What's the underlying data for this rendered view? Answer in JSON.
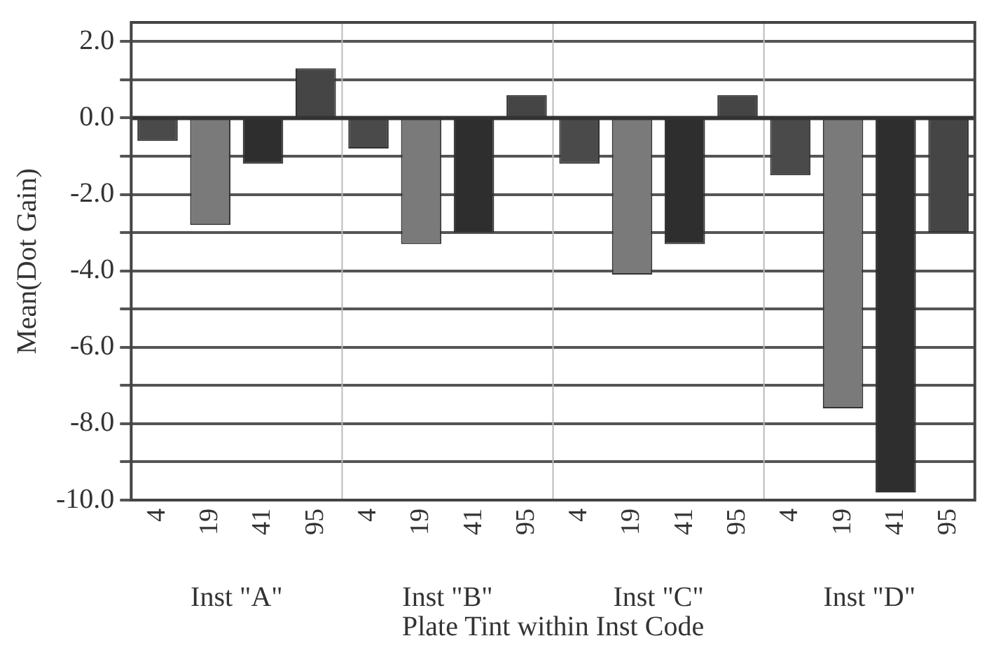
{
  "chart_data": {
    "type": "bar",
    "xlabel": "Plate Tint within Inst Code",
    "ylabel": "Mean(Dot Gain)",
    "categories": [
      "4",
      "19",
      "41",
      "95",
      "4",
      "19",
      "41",
      "95",
      "4",
      "19",
      "41",
      "95",
      "4",
      "19",
      "41",
      "95"
    ],
    "values": [
      -0.6,
      -2.8,
      -1.2,
      1.3,
      -0.8,
      -3.3,
      -3.0,
      0.6,
      -1.2,
      -4.1,
      -3.3,
      0.6,
      -1.5,
      -7.6,
      -9.8,
      -3.0
    ],
    "colors": [
      "#4a4a4a",
      "#7a7a7a",
      "#2e2e2e",
      "#454545",
      "#4a4a4a",
      "#7a7a7a",
      "#2e2e2e",
      "#454545",
      "#4a4a4a",
      "#7a7a7a",
      "#2e2e2e",
      "#454545",
      "#4a4a4a",
      "#7a7a7a",
      "#2e2e2e",
      "#454545"
    ],
    "ylim": [
      -10,
      2.5
    ],
    "yticks": [
      {
        "value": -10,
        "label": "-10.0"
      },
      {
        "value": -9,
        "label": null
      },
      {
        "value": -8,
        "label": "-8.0"
      },
      {
        "value": -7,
        "label": null
      },
      {
        "value": -6,
        "label": "-6.0"
      },
      {
        "value": -5,
        "label": null
      },
      {
        "value": -4,
        "label": "-4.0"
      },
      {
        "value": -3,
        "label": null
      },
      {
        "value": -2,
        "label": "-2.0"
      },
      {
        "value": -1,
        "label": null
      },
      {
        "value": 0,
        "label": "0.0"
      },
      {
        "value": 1,
        "label": null
      },
      {
        "value": 2,
        "label": "2.0"
      }
    ],
    "grid": "y",
    "legend": false,
    "annotations": [
      "Inst \"A\"",
      "Inst \"B\"",
      "Inst \"C\"",
      "Inst \"D\""
    ]
  }
}
